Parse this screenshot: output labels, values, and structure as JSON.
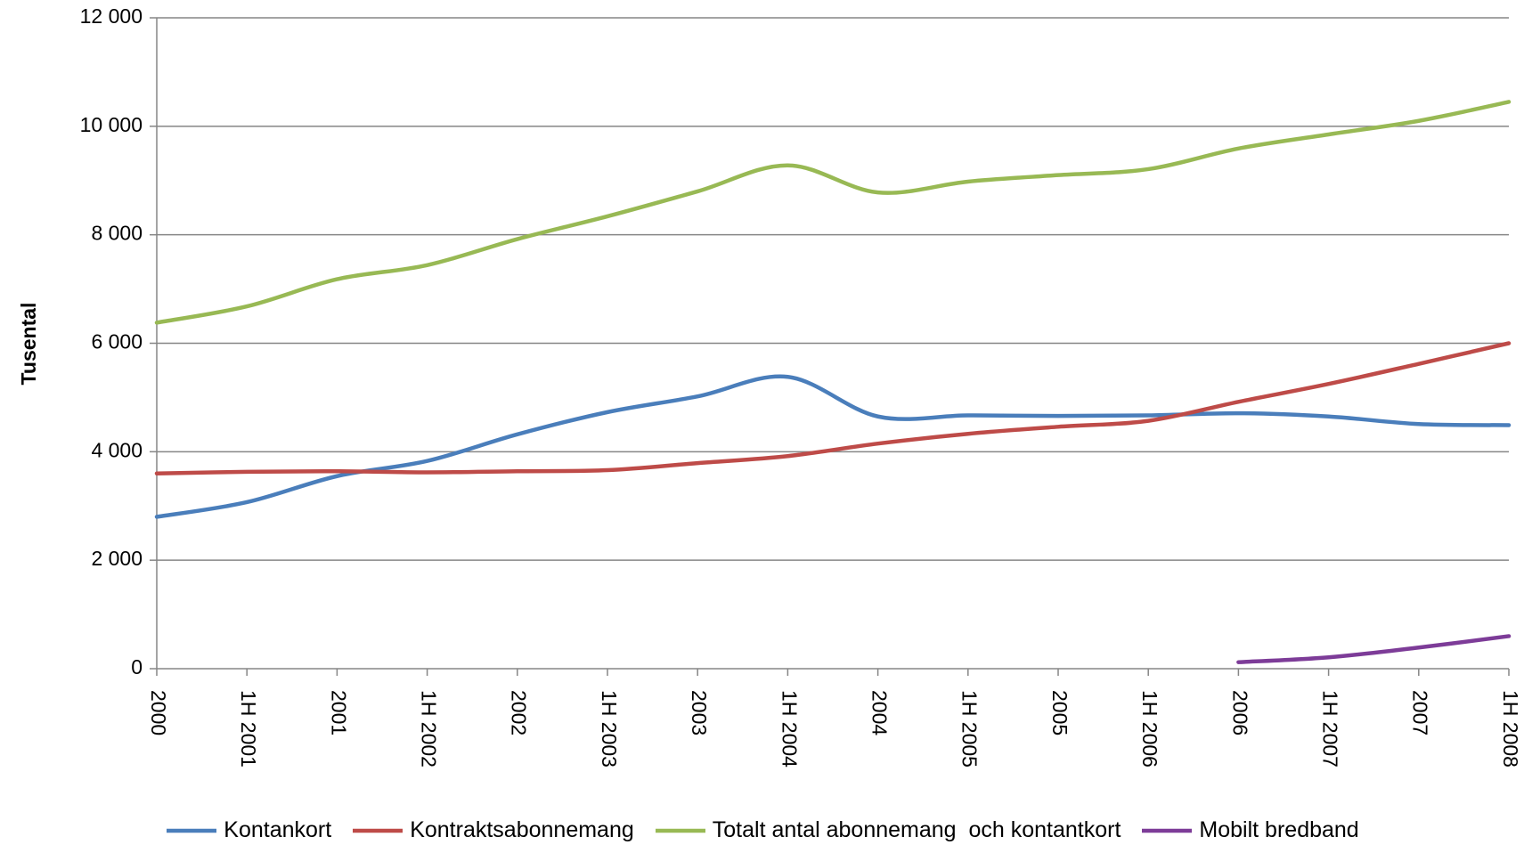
{
  "chart_data": {
    "type": "line",
    "y_label": "Tusental",
    "categories": [
      "2000",
      "1H 2001",
      "2001",
      "1H 2002",
      "2002",
      "1H 2003",
      "2003",
      "1H 2004",
      "2004",
      "1H 2005",
      "2005",
      "1H 2006",
      "2006",
      "1H 2007",
      "2007",
      "1H 2008"
    ],
    "series": [
      {
        "name": "Kontankort",
        "color": "#4a7ebb",
        "values": [
          2800,
          3070,
          3550,
          3830,
          4320,
          4730,
          5020,
          5380,
          4650,
          4670,
          4660,
          4670,
          4710,
          4650,
          4510,
          4490
        ]
      },
      {
        "name": "Kontraktsabonnemang",
        "color": "#be4b48",
        "values": [
          3600,
          3630,
          3640,
          3620,
          3640,
          3660,
          3790,
          3920,
          4150,
          4330,
          4460,
          4570,
          4920,
          5250,
          5620,
          6000
        ]
      },
      {
        "name": "Totalt antal abonnemang  och kontantkort",
        "color": "#98b954",
        "values": [
          6380,
          6680,
          7180,
          7440,
          7920,
          8340,
          8800,
          9280,
          8780,
          8980,
          9100,
          9210,
          9590,
          9850,
          10100,
          10450
        ]
      },
      {
        "name": "Mobilt bredband",
        "color": "#7d3c98",
        "values": [
          null,
          null,
          null,
          null,
          null,
          null,
          null,
          null,
          null,
          null,
          null,
          null,
          120,
          210,
          390,
          600
        ]
      }
    ],
    "ylim": [
      0,
      12000
    ],
    "yticks": [
      0,
      {
        "value": 2000,
        "label": "2 000"
      },
      {
        "value": 4000,
        "label": "4 000"
      },
      {
        "value": 6000,
        "label": "6 000"
      },
      {
        "value": 8000,
        "label": "8 000"
      },
      {
        "value": 10000,
        "label": "10 000"
      },
      {
        "value": 12000,
        "label": "12 000"
      }
    ],
    "grid": true
  }
}
